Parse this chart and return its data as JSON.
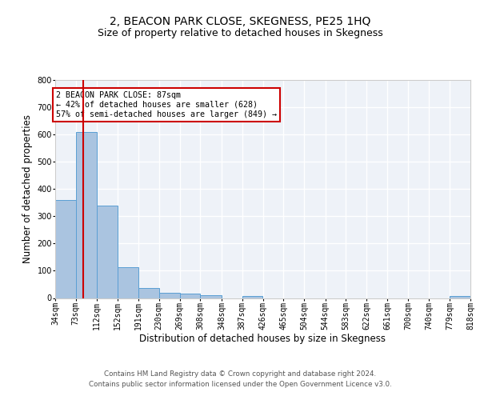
{
  "title": "2, BEACON PARK CLOSE, SKEGNESS, PE25 1HQ",
  "subtitle": "Size of property relative to detached houses in Skegness",
  "xlabel": "Distribution of detached houses by size in Skegness",
  "ylabel": "Number of detached properties",
  "bin_edges": [
    34,
    73,
    112,
    152,
    191,
    230,
    269,
    308,
    348,
    387,
    426,
    465,
    504,
    544,
    583,
    622,
    661,
    700,
    740,
    779,
    818
  ],
  "bar_heights": [
    360,
    610,
    340,
    113,
    38,
    20,
    15,
    10,
    0,
    8,
    0,
    0,
    0,
    0,
    0,
    0,
    0,
    0,
    0,
    6
  ],
  "bar_color": "#aac4e0",
  "bar_edge_color": "#5a9fd4",
  "background_color": "#eef2f8",
  "grid_color": "#ffffff",
  "property_size": 87,
  "vline_color": "#cc0000",
  "annotation_text": "2 BEACON PARK CLOSE: 87sqm\n← 42% of detached houses are smaller (628)\n57% of semi-detached houses are larger (849) →",
  "annotation_box_color": "#ffffff",
  "annotation_box_edge": "#cc0000",
  "ylim": [
    0,
    800
  ],
  "yticks": [
    0,
    100,
    200,
    300,
    400,
    500,
    600,
    700,
    800
  ],
  "footer_text": "Contains HM Land Registry data © Crown copyright and database right 2024.\nContains public sector information licensed under the Open Government Licence v3.0.",
  "title_fontsize": 10,
  "subtitle_fontsize": 9,
  "tick_label_fontsize": 7,
  "xlabel_fontsize": 8.5,
  "ylabel_fontsize": 8.5
}
